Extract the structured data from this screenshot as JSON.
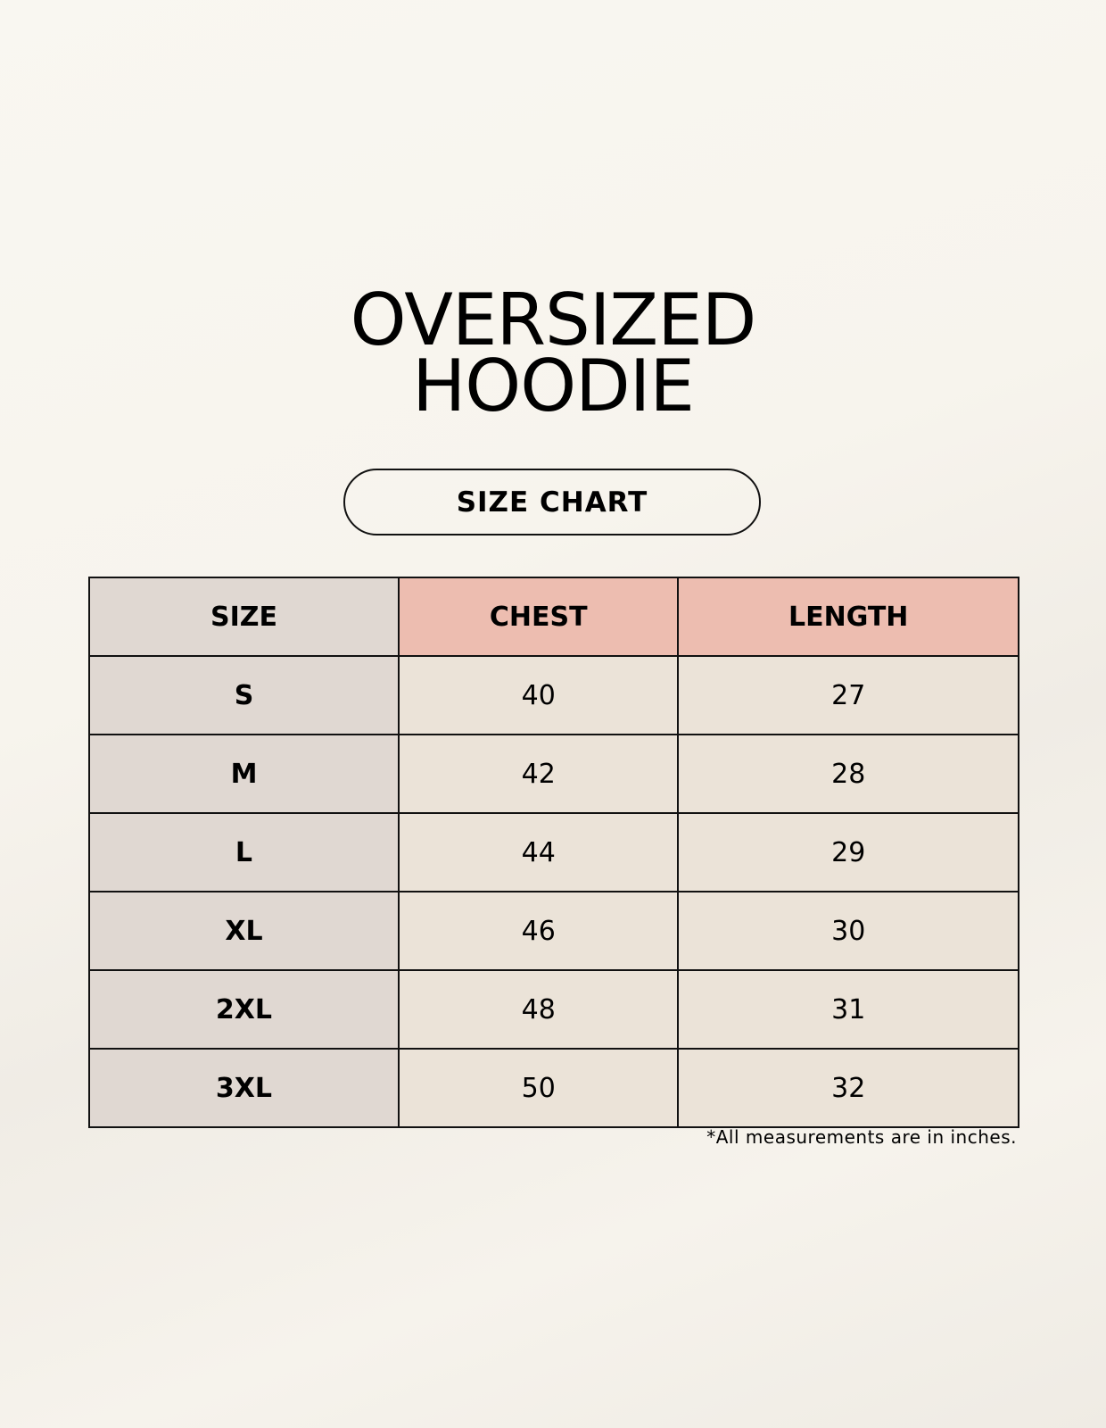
{
  "title": {
    "line1": "OVERSIZED",
    "line2": "HOODIE"
  },
  "subtitle": "SIZE CHART",
  "table": {
    "headers": [
      "SIZE",
      "CHEST",
      "LENGTH"
    ],
    "rows": [
      [
        "S",
        "40",
        "27"
      ],
      [
        "M",
        "42",
        "28"
      ],
      [
        "L",
        "44",
        "29"
      ],
      [
        "XL",
        "46",
        "30"
      ],
      [
        "2XL",
        "48",
        "31"
      ],
      [
        "3XL",
        "50",
        "32"
      ]
    ]
  },
  "footnote": "*All measurements are in inches.",
  "colors": {
    "size_column": "#e0d8d2",
    "header_accent": "#edbdb0",
    "value_cells": "#ebe3d8"
  }
}
